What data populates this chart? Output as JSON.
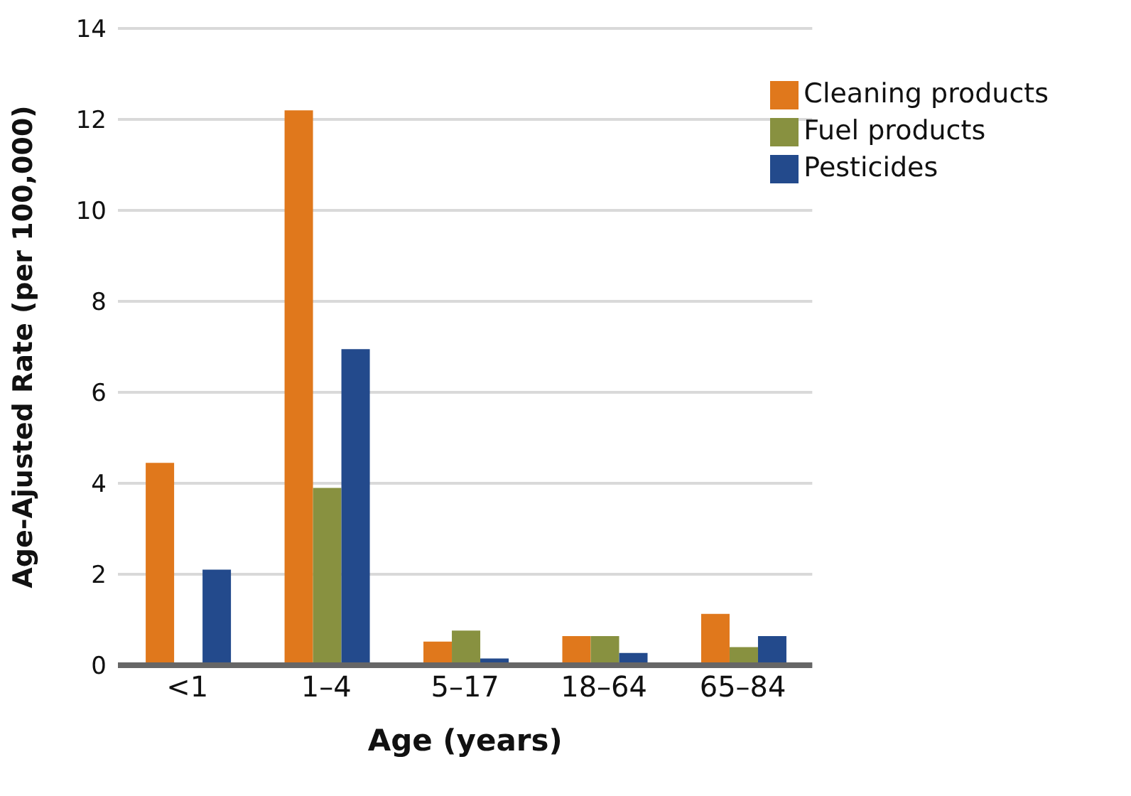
{
  "chart_data": {
    "type": "bar",
    "xlabel": "Age (years)",
    "ylabel": "Age-Ajusted Rate (per 100,000)",
    "categories": [
      "<1",
      "1–4",
      "5–17",
      "18–64",
      "65–84"
    ],
    "series": [
      {
        "name": "Cleaning products",
        "color": "#e0781c",
        "values": [
          4.45,
          12.2,
          0.52,
          0.64,
          1.13
        ]
      },
      {
        "name": "Fuel products",
        "color": "#889140",
        "values": [
          null,
          3.9,
          0.76,
          0.64,
          0.4
        ]
      },
      {
        "name": "Pesticides",
        "color": "#234a8c",
        "values": [
          2.1,
          6.95,
          0.15,
          0.27,
          0.64
        ]
      }
    ],
    "ylim": [
      0,
      14
    ],
    "yticks": [
      0,
      2,
      4,
      6,
      8,
      10,
      12,
      14
    ],
    "grid": "y",
    "legend": "top right"
  }
}
